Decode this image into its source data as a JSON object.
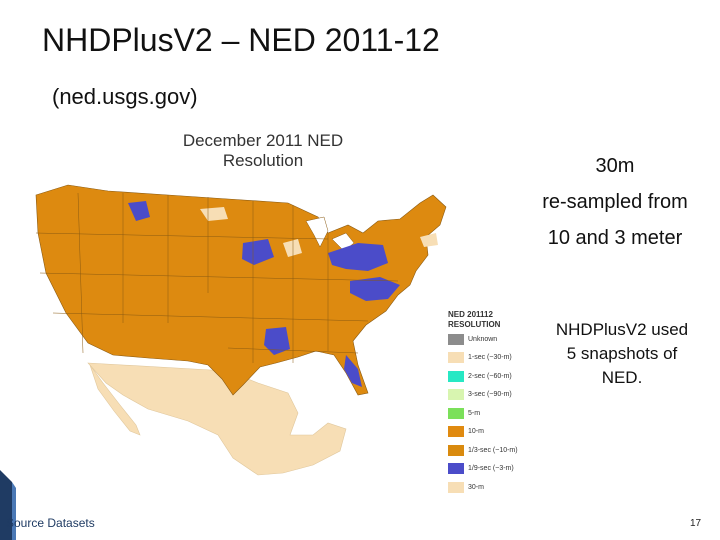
{
  "slide": {
    "title": "NHDPlusV2 – NED 2011-12",
    "subtitle": "(ned.usgs.gov)",
    "notes": {
      "line1": "30m",
      "line2": "re-sampled from",
      "line3": "10 and 3 meter",
      "line4": "NHDPlusV2 used",
      "line5": "5 snapshots of",
      "line6": "NED."
    },
    "footer": "Source Datasets",
    "page_number": "17"
  },
  "map": {
    "title_line1": "December 2011 NED",
    "title_line2": "Resolution",
    "legend": {
      "heading1": "NED 201112",
      "heading2": "RESOLUTION",
      "items": [
        {
          "label": "Unknown",
          "color": "#8c8c8c"
        },
        {
          "label": "1-sec (~30-m)",
          "color": "#f7deb5"
        },
        {
          "label": "2-sec (~60-m)",
          "color": "#27e8c4"
        },
        {
          "label": "3-sec (~90-m)",
          "color": "#d8f5b0"
        },
        {
          "label": "5-m",
          "color": "#7be05a"
        },
        {
          "label": "10-m",
          "color": "#e08a10"
        },
        {
          "label": "1/3-sec (~10-m)",
          "color": "#d98a0e"
        },
        {
          "label": "1/9-sec (~3-m)",
          "color": "#4b4cc9"
        },
        {
          "label": "30-m",
          "color": "#f7deb5"
        }
      ]
    }
  },
  "colors": {
    "accent": "#1f3b63",
    "us_fill": "#dd8a10",
    "three_meter_fill": "#4b4cc9",
    "mexico_fill": "#f7deb5"
  }
}
